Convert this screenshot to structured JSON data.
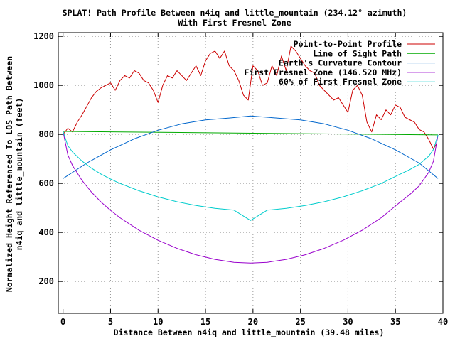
{
  "chart_data": {
    "type": "line",
    "title": "SPLAT! Path Profile Between n4iq and little_mountain (234.12° azimuth)",
    "subtitle": "With First Fresnel Zone",
    "xlabel": "Distance Between n4iq and little_mountain (39.48 miles)",
    "ylabel_line1": "Normalized Height Referenced To LOS Path Between",
    "ylabel_line2": "n4iq and little_mountain (feet)",
    "xlim": [
      -0.5,
      40
    ],
    "ylim": [
      70,
      1215
    ],
    "xticks": [
      0,
      5,
      10,
      15,
      20,
      25,
      30,
      35,
      40
    ],
    "yticks": [
      200,
      400,
      600,
      800,
      1000,
      1200
    ],
    "grid": true,
    "legend_position": "top-right",
    "series": [
      {
        "name": "Point-to-Point Profile",
        "color": "#cc0000",
        "x": [
          0,
          0.5,
          1,
          1.5,
          2,
          2.5,
          3,
          3.5,
          4,
          4.5,
          5,
          5.5,
          6,
          6.5,
          7,
          7.5,
          8,
          8.5,
          9,
          9.5,
          10,
          10.5,
          11,
          11.5,
          12,
          12.5,
          13,
          13.5,
          14,
          14.5,
          15,
          15.5,
          16,
          16.5,
          17,
          17.5,
          18,
          18.5,
          19,
          19.5,
          20,
          20.5,
          21,
          21.5,
          22,
          22.5,
          23,
          23.5,
          24,
          24.5,
          25,
          25.5,
          26,
          26.5,
          27,
          27.5,
          28,
          28.5,
          29,
          29.5,
          30,
          30.5,
          31,
          31.5,
          32,
          32.5,
          33,
          33.5,
          34,
          34.5,
          35,
          35.5,
          36,
          36.5,
          37,
          37.5,
          38,
          38.5,
          39,
          39.3
        ],
        "y": [
          800,
          825,
          810,
          850,
          880,
          915,
          950,
          975,
          990,
          1000,
          1010,
          980,
          1020,
          1040,
          1030,
          1060,
          1050,
          1020,
          1010,
          980,
          930,
          1000,
          1040,
          1030,
          1060,
          1040,
          1020,
          1050,
          1080,
          1040,
          1100,
          1130,
          1140,
          1110,
          1140,
          1080,
          1060,
          1020,
          960,
          940,
          1080,
          1060,
          1000,
          1010,
          1080,
          1040,
          1120,
          1060,
          1160,
          1140,
          1110,
          1080,
          1060,
          1050,
          1000,
          980,
          960,
          940,
          950,
          920,
          890,
          980,
          1000,
          960,
          850,
          810,
          880,
          860,
          900,
          880,
          920,
          910,
          870,
          860,
          850,
          820,
          810,
          780,
          740,
          760
        ]
      },
      {
        "name": "Line of Sight Path",
        "color": "#00aa00",
        "x": [
          0,
          39.48
        ],
        "y": [
          812,
          798
        ]
      },
      {
        "name": "Earth's Curvature Contour",
        "color": "#0066cc",
        "x": [
          0,
          2.5,
          5,
          7.5,
          10,
          12.5,
          15,
          17.5,
          19.74,
          22.5,
          25,
          27.5,
          30,
          32.5,
          35,
          37.5,
          39.48
        ],
        "y": [
          620,
          683,
          737,
          782,
          817,
          843,
          859,
          867,
          875,
          867,
          859,
          843,
          817,
          782,
          737,
          683,
          620
        ]
      },
      {
        "name": "First Fresnel Zone (146.520 MHz)",
        "color": "#9900cc",
        "x": [
          0,
          0.5,
          1,
          2,
          3,
          4,
          5,
          6,
          8,
          10,
          12,
          14,
          16,
          18,
          19.74,
          21.5,
          23.5,
          25.5,
          27.5,
          29.5,
          31.5,
          33.5,
          35.5,
          36.5,
          37.5,
          38.5,
          39,
          39.48
        ],
        "y": [
          812,
          716,
          673,
          612,
          564,
          524,
          490,
          460,
          409,
          368,
          335,
          309,
          290,
          278,
          275,
          278,
          290,
          309,
          335,
          368,
          409,
          460,
          524,
          554,
          590,
          645,
          690,
          798
        ]
      },
      {
        "name": "60% of First Fresnel Zone",
        "color": "#00cccc",
        "x": [
          0,
          0.5,
          1,
          2,
          3,
          4,
          5,
          6,
          8,
          10,
          12,
          14,
          16,
          18,
          19.74,
          21.5,
          23.5,
          25.5,
          27.5,
          29.5,
          31.5,
          33.5,
          35.5,
          36.5,
          37.5,
          38.5,
          39,
          39.48
        ],
        "y": [
          812,
          754,
          728,
          691,
          662,
          638,
          618,
          600,
          570,
          545,
          525,
          510,
          498,
          491,
          449,
          491,
          498,
          510,
          525,
          545,
          570,
          600,
          638,
          656,
          678,
          711,
          738,
          798
        ]
      }
    ]
  }
}
